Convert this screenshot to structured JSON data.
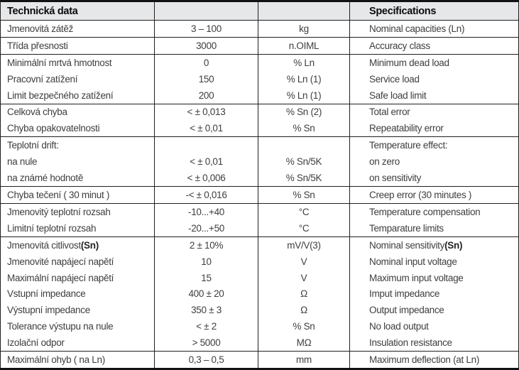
{
  "header": {
    "left_title": "Technická data",
    "right_title": "Specifications"
  },
  "rows": [
    {
      "cs": "Jmenovitá zátěž",
      "value": "3 – 100",
      "unit": "kg",
      "en": "Nominal capacities (Ln)",
      "group_end": true
    },
    {
      "cs": "Třída přesnosti",
      "value": "3000",
      "unit": "n.OIML",
      "en": "Accuracy class",
      "group_end": true
    },
    {
      "cs": "Minimální mrtvá hmotnost",
      "value": "0",
      "unit": "% Ln",
      "en": "Minimum dead load",
      "group_end": false
    },
    {
      "cs": "Pracovní zatížení",
      "value": "150",
      "unit": "% Ln (1)",
      "en": "Service load",
      "group_end": false
    },
    {
      "cs": "Limit bezpečného zatížení",
      "value": "200",
      "unit": "% Ln (1)",
      "en": "Safe load limit",
      "group_end": true
    },
    {
      "cs": "Celková chyba",
      "value": "< ± 0,013",
      "unit": "% Sn (2)",
      "en": "Total error",
      "group_end": false
    },
    {
      "cs": "Chyba opakovatelnosti",
      "value": "< ± 0,01",
      "unit": "% Sn",
      "en": "Repeatability error",
      "group_end": true
    },
    {
      "cs": "Teplotní drift:",
      "value": "",
      "unit": "",
      "en": "Temperature effect:",
      "group_end": false
    },
    {
      "cs": "na nule",
      "value": "< ± 0,01",
      "unit": "% Sn/5K",
      "en": "on zero",
      "group_end": false
    },
    {
      "cs": "na známé hodnotě",
      "value": "< ± 0,006",
      "unit": "% Sn/5K",
      "en": "on sensitivity",
      "group_end": true
    },
    {
      "cs": "Chyba tečení ( 30 minut )",
      "value": "-< ± 0,016",
      "unit": "% Sn",
      "en": "Creep error (30 minutes )",
      "group_end": true
    },
    {
      "cs": "Jmenovitý teplotní rozsah",
      "value": "-10...+40",
      "unit": "°C",
      "en": "Temperature compensation",
      "group_end": false
    },
    {
      "cs": "Limitní teplotní rozsah",
      "value": "-20...+50",
      "unit": "°C",
      "en": "Temparature limits",
      "group_end": true
    },
    {
      "cs": "Jmenovitá citlivost ",
      "cs_bold": "(Sn)",
      "value": "2 ± 10%",
      "unit": "mV/V(3)",
      "en": "Nominal sensitivity ",
      "en_bold": "(Sn)",
      "group_end": false
    },
    {
      "cs": "Jmenovité napájecí napětí",
      "value": "10",
      "unit": "V",
      "en": "Nominal input voltage",
      "group_end": false
    },
    {
      "cs": "Maximální napájecí napětí",
      "value": "15",
      "unit": "V",
      "en": "Maximum input voltage",
      "group_end": false
    },
    {
      "cs": "Vstupní impedance",
      "value": "400 ± 20",
      "unit": "Ω",
      "en": "Imput impedance",
      "group_end": false
    },
    {
      "cs": "Výstupní impedance",
      "value": "350 ± 3",
      "unit": "Ω",
      "en": "Output impedance",
      "group_end": false
    },
    {
      "cs": "Tolerance výstupu na nule",
      "value": "< ± 2",
      "unit": "% Sn",
      "en": "No load output",
      "group_end": false
    },
    {
      "cs": "Izolační odpor",
      "value": "> 5000",
      "unit": "MΩ",
      "en": "Insulation resistance",
      "group_end": true
    },
    {
      "cs": "Maximální ohyb ( na Ln)",
      "value": "0,3 – 0,5",
      "unit": "mm",
      "en": "Maximum deflection (at Ln)",
      "group_end": false
    }
  ],
  "colors": {
    "header_bg": "#e5e7e9",
    "border_color": "#1f1f1f",
    "thick_border_color": "#121212",
    "text_color": "#3e3e3e",
    "header_text_color": "#0c0c0c"
  }
}
